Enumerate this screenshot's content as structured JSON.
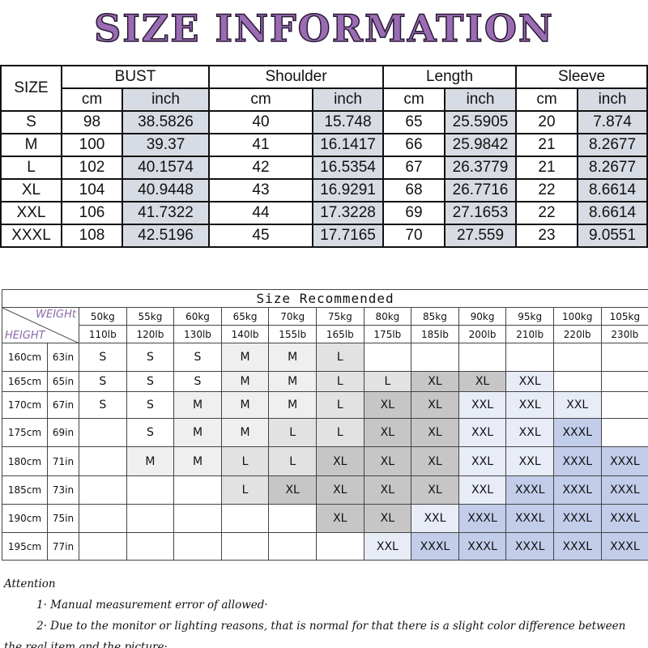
{
  "title": "SIZE INFORMATION",
  "size_table": {
    "headers": [
      "SIZE",
      "BUST",
      "Shoulder",
      "Length",
      "Sleeve"
    ],
    "subheaders": [
      "cm",
      "inch",
      "cm",
      "inch",
      "cm",
      "inch",
      "cm",
      "inch"
    ],
    "rows": [
      [
        "S",
        "98",
        "38.5826",
        "40",
        "15.748",
        "65",
        "25.5905",
        "20",
        "7.874"
      ],
      [
        "M",
        "100",
        "39.37",
        "41",
        "16.1417",
        "66",
        "25.9842",
        "21",
        "8.2677"
      ],
      [
        "L",
        "102",
        "40.1574",
        "42",
        "16.5354",
        "67",
        "26.3779",
        "21",
        "8.2677"
      ],
      [
        "XL",
        "104",
        "40.9448",
        "43",
        "16.9291",
        "68",
        "26.7716",
        "22",
        "8.6614"
      ],
      [
        "XXL",
        "106",
        "41.7322",
        "44",
        "17.3228",
        "69",
        "27.1653",
        "22",
        "8.6614"
      ],
      [
        "XXXL",
        "108",
        "42.5196",
        "45",
        "17.7165",
        "70",
        "27.559",
        "23",
        "9.0551"
      ]
    ]
  },
  "recommend": {
    "title": "Size Recommended",
    "weight_label": "WEIGHt",
    "height_label": "HEIGHT",
    "weights_kg": [
      "50kg",
      "55kg",
      "60kg",
      "65kg",
      "70kg",
      "75kg",
      "80kg",
      "85kg",
      "90kg",
      "95kg",
      "100kg",
      "105kg"
    ],
    "weights_lb": [
      "110lb",
      "120lb",
      "130lb",
      "140lb",
      "155lb",
      "165lb",
      "175lb",
      "185lb",
      "200lb",
      "210lb",
      "220lb",
      "230lb"
    ],
    "rows": [
      {
        "cm": "160cm",
        "in": "63in",
        "sizes": [
          "S",
          "S",
          "S",
          "M",
          "M",
          "L",
          null,
          null,
          null,
          null,
          null,
          null
        ]
      },
      {
        "cm": "165cm",
        "in": "65in",
        "sizes": [
          "S",
          "S",
          "S",
          "M",
          "M",
          "L",
          "L",
          "XL",
          "XL",
          "XXL",
          null,
          null
        ]
      },
      {
        "cm": "170cm",
        "in": "67in",
        "sizes": [
          "S",
          "S",
          "M",
          "M",
          "M",
          "L",
          "XL",
          "XL",
          "XXL",
          "XXL",
          "XXL",
          null
        ]
      },
      {
        "cm": "175cm",
        "in": "69in",
        "sizes": [
          null,
          "S",
          "M",
          "M",
          "L",
          "L",
          "XL",
          "XL",
          "XXL",
          "XXL",
          "XXXL",
          null
        ]
      },
      {
        "cm": "180cm",
        "in": "71in",
        "sizes": [
          null,
          "M",
          "M",
          "L",
          "L",
          "XL",
          "XL",
          "XL",
          "XXL",
          "XXL",
          "XXXL",
          "XXXL"
        ]
      },
      {
        "cm": "185cm",
        "in": "73in",
        "sizes": [
          null,
          null,
          null,
          "L",
          "XL",
          "XL",
          "XL",
          "XL",
          "XXL",
          "XXXL",
          "XXXL",
          "XXXL"
        ]
      },
      {
        "cm": "190cm",
        "in": "75in",
        "sizes": [
          null,
          null,
          null,
          null,
          null,
          "XL",
          "XL",
          "XXL",
          "XXXL",
          "XXXL",
          "XXXL",
          "XXXL"
        ]
      },
      {
        "cm": "195cm",
        "in": "77in",
        "sizes": [
          null,
          null,
          null,
          null,
          null,
          null,
          "XXL",
          "XXXL",
          "XXXL",
          "XXXL",
          "XXXL",
          "XXXL"
        ]
      }
    ]
  },
  "attention": {
    "title": "Attention",
    "notes": [
      "1· Manual measurement error of allowed·",
      "2·  Due to the monitor or lighting reasons, that is normal for that there is a slight color difference between the real item and the picture·"
    ]
  }
}
